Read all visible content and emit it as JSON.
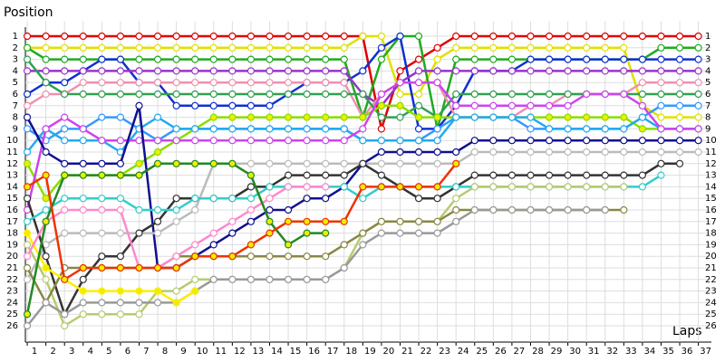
{
  "chart_data": {
    "type": "lap",
    "y_title": "Position",
    "x_title": "Laps",
    "xlim": [
      0.9,
      37.7
    ],
    "ylim": [
      0,
      27
    ],
    "y_reversed": true,
    "grid": true,
    "xticks": [
      1,
      2,
      3,
      4,
      5,
      6,
      7,
      8,
      9,
      10,
      11,
      12,
      13,
      14,
      15,
      16,
      17,
      18,
      19,
      20,
      21,
      22,
      23,
      24,
      25,
      26,
      27,
      28,
      29,
      30,
      31,
      32,
      33,
      34,
      35,
      36,
      37
    ],
    "yticks": [
      1,
      2,
      3,
      4,
      5,
      6,
      7,
      8,
      9,
      10,
      11,
      12,
      13,
      14,
      15,
      16,
      17,
      18,
      19,
      20,
      21,
      22,
      23,
      24,
      25,
      26
    ],
    "x": [
      1,
      2,
      3,
      4,
      5,
      6,
      7,
      8,
      9,
      10,
      11,
      12,
      13,
      14,
      15,
      16,
      17,
      18,
      19,
      20,
      21,
      22,
      23,
      24,
      25,
      26,
      27,
      28,
      29,
      30,
      31,
      32,
      33,
      34,
      35,
      36,
      37
    ],
    "series": [
      {
        "color": "#e00000",
        "marker_fill": "#ffffff",
        "values": [
          1,
          1,
          1,
          1,
          1,
          1,
          1,
          1,
          1,
          1,
          1,
          1,
          1,
          1,
          1,
          1,
          1,
          1,
          1,
          9,
          4,
          3,
          2,
          1,
          1,
          1,
          1,
          1,
          1,
          1,
          1,
          1,
          1,
          1,
          1,
          1,
          1
        ]
      },
      {
        "color": "#e0e000",
        "marker_fill": "#ffffff",
        "values": [
          2,
          2,
          2,
          2,
          2,
          2,
          2,
          2,
          2,
          2,
          2,
          2,
          2,
          2,
          2,
          2,
          2,
          2,
          1,
          1,
          6,
          6,
          3,
          2,
          2,
          2,
          2,
          2,
          2,
          2,
          2,
          2,
          2,
          7,
          8,
          8,
          8
        ]
      },
      {
        "color": "#20aa20",
        "marker_fill": "#ffffff",
        "values": [
          2,
          3,
          3,
          3,
          3,
          3,
          3,
          3,
          3,
          3,
          3,
          3,
          3,
          3,
          3,
          3,
          3,
          3,
          8,
          3,
          1,
          1,
          9,
          3,
          3,
          3,
          3,
          3,
          3,
          3,
          3,
          3,
          3,
          3,
          2,
          2,
          2
        ]
      },
      {
        "color": "#1030d0",
        "marker_fill": "#ffffff",
        "values": [
          6,
          5,
          5,
          4,
          3,
          3,
          5,
          5,
          7,
          7,
          7,
          7,
          7,
          7,
          6,
          5,
          5,
          5,
          4,
          2,
          1,
          9,
          9,
          7,
          4,
          4,
          4,
          3,
          3,
          3,
          3,
          3,
          3,
          3,
          3,
          3,
          3
        ]
      },
      {
        "color": "#9933cc",
        "marker_fill": "#ffffff",
        "values": [
          4,
          4,
          4,
          4,
          4,
          4,
          4,
          4,
          4,
          4,
          4,
          4,
          4,
          4,
          4,
          4,
          4,
          4,
          6,
          7,
          5,
          4,
          4,
          4,
          4,
          4,
          4,
          4,
          4,
          4,
          4,
          4,
          4,
          4,
          4,
          4,
          4
        ]
      },
      {
        "color": "#f090b0",
        "marker_fill": "#ffffff",
        "values": [
          7,
          6,
          6,
          5,
          5,
          5,
          5,
          5,
          5,
          5,
          5,
          5,
          5,
          5,
          5,
          5,
          5,
          5,
          8,
          6,
          5,
          5,
          5,
          8,
          8,
          8,
          8,
          7,
          7,
          6,
          6,
          6,
          6,
          5,
          5,
          5,
          5
        ]
      },
      {
        "color": "#30a050",
        "marker_fill": "#ffffff",
        "values": [
          3,
          5,
          6,
          6,
          6,
          6,
          6,
          6,
          6,
          6,
          6,
          6,
          6,
          6,
          6,
          6,
          6,
          6,
          6,
          8,
          8,
          7,
          8,
          6,
          6,
          6,
          6,
          6,
          6,
          6,
          6,
          6,
          6,
          6,
          6,
          6,
          6
        ]
      },
      {
        "color": "#3399ff",
        "marker_fill": "#ffffff",
        "values": [
          9,
          10,
          9,
          9,
          8,
          8,
          9,
          10,
          9,
          9,
          9,
          9,
          9,
          9,
          9,
          9,
          9,
          9,
          10,
          10,
          10,
          10,
          9,
          8,
          8,
          8,
          8,
          9,
          9,
          9,
          9,
          9,
          9,
          8,
          7,
          7,
          7
        ]
      },
      {
        "color": "#88dd00",
        "marker_fill": "#eeee00",
        "values": [
          12,
          15,
          13,
          13,
          13,
          13,
          12,
          11,
          10,
          9,
          8,
          8,
          8,
          8,
          8,
          8,
          8,
          8,
          8,
          7,
          7,
          8,
          8,
          8,
          8,
          8,
          8,
          8,
          8,
          8,
          8,
          8,
          8,
          9,
          9,
          9,
          9
        ]
      },
      {
        "color": "#22aaee",
        "marker_fill": "#ffffff",
        "values": [
          11,
          9,
          10,
          10,
          10,
          11,
          9,
          8,
          9,
          9,
          9,
          9,
          9,
          9,
          9,
          9,
          9,
          9,
          10,
          10,
          10,
          10,
          10,
          8,
          8,
          8,
          8,
          8,
          9,
          9,
          9,
          9,
          9,
          8,
          9,
          9,
          9
        ]
      },
      {
        "color": "#cc44ee",
        "marker_fill": "#ffffff",
        "values": [
          16,
          9,
          8,
          9,
          10,
          10,
          10,
          10,
          10,
          10,
          10,
          10,
          10,
          10,
          10,
          10,
          10,
          10,
          9,
          6,
          5,
          5,
          5,
          7,
          7,
          7,
          7,
          7,
          7,
          7,
          6,
          6,
          6,
          7,
          9,
          9,
          9
        ]
      },
      {
        "color": "#101090",
        "marker_fill": "#ffffff",
        "values": [
          8,
          11,
          12,
          12,
          12,
          12,
          7,
          21,
          21,
          20,
          19,
          18,
          17,
          16,
          16,
          15,
          15,
          14,
          12,
          11,
          11,
          11,
          11,
          11,
          10,
          10,
          10,
          10,
          10,
          10,
          10,
          10,
          10,
          10,
          10,
          10,
          10
        ]
      },
      {
        "color": "#bbbbbb",
        "marker_fill": "#ffffff",
        "values": [
          22,
          19,
          18,
          18,
          18,
          18,
          18,
          18,
          17,
          16,
          12,
          12,
          12,
          12,
          12,
          12,
          12,
          12,
          12,
          12,
          12,
          12,
          12,
          12,
          11,
          11,
          11,
          11,
          11,
          11,
          11,
          11,
          11,
          11,
          11,
          11,
          11
        ]
      },
      {
        "color": "#333333",
        "marker_fill": "#ffffff",
        "values": [
          15,
          20,
          25,
          22,
          20,
          20,
          18,
          17,
          15,
          15,
          15,
          15,
          14,
          14,
          13,
          13,
          13,
          13,
          12,
          13,
          14,
          15,
          15,
          14,
          13,
          13,
          13,
          13,
          13,
          13,
          13,
          13,
          13,
          13,
          12,
          12,
          null
        ]
      },
      {
        "color": "#33cccc",
        "marker_fill": "#ffffff",
        "values": [
          17,
          16,
          15,
          15,
          15,
          15,
          16,
          16,
          16,
          15,
          15,
          15,
          15,
          14,
          14,
          14,
          14,
          14,
          15,
          14,
          14,
          14,
          14,
          14,
          14,
          14,
          14,
          14,
          14,
          14,
          14,
          14,
          14,
          14,
          13,
          null,
          null
        ]
      },
      {
        "color": "#b5cc70",
        "marker_fill": "#ffffff",
        "values": [
          19,
          22,
          26,
          25,
          25,
          25,
          25,
          23,
          23,
          22,
          22,
          22,
          22,
          22,
          22,
          22,
          22,
          21,
          18,
          17,
          17,
          17,
          17,
          15,
          14,
          14,
          14,
          14,
          14,
          14,
          14,
          14,
          14,
          null,
          null,
          null,
          null
        ]
      },
      {
        "color": "#888844",
        "marker_fill": "#ffffff",
        "values": [
          21,
          24,
          21,
          21,
          21,
          21,
          21,
          21,
          20,
          20,
          20,
          20,
          20,
          20,
          20,
          20,
          20,
          19,
          18,
          17,
          17,
          17,
          17,
          16,
          16,
          16,
          16,
          16,
          16,
          16,
          16,
          16,
          16,
          null,
          null,
          null,
          null
        ]
      },
      {
        "color": "#999999",
        "marker_fill": "#ffffff",
        "values": [
          26,
          24,
          25,
          24,
          24,
          24,
          24,
          24,
          24,
          23,
          22,
          22,
          22,
          22,
          22,
          22,
          22,
          21,
          19,
          18,
          18,
          18,
          18,
          17,
          16,
          16,
          16,
          16,
          16,
          16,
          16,
          16,
          null,
          null,
          null,
          null,
          null
        ]
      },
      {
        "color": "#ffee00",
        "marker_fill": "#eeee00",
        "values": [
          18,
          21,
          22,
          23,
          23,
          23,
          23,
          23,
          24,
          23,
          null,
          null,
          null,
          null,
          null,
          null,
          null,
          null,
          null,
          null,
          null,
          null,
          null,
          null,
          null,
          null,
          null,
          null,
          null,
          null,
          null,
          null,
          null,
          null,
          null,
          null,
          null
        ]
      },
      {
        "color": "#ff88cc",
        "marker_fill": "#ffffff",
        "values": [
          20,
          17,
          16,
          16,
          16,
          16,
          21,
          21,
          20,
          19,
          18,
          17,
          16,
          15,
          14,
          14,
          14,
          null,
          null,
          null,
          null,
          null,
          null,
          null,
          null,
          null,
          null,
          null,
          null,
          null,
          null,
          null,
          null,
          null,
          null,
          null,
          null
        ]
      },
      {
        "color": "#228822",
        "marker_fill": "#eeee00",
        "values": [
          25,
          17,
          13,
          13,
          13,
          13,
          13,
          12,
          12,
          12,
          12,
          12,
          13,
          17,
          19,
          18,
          18,
          null,
          null,
          null,
          null,
          null,
          null,
          null,
          null,
          null,
          null,
          null,
          null,
          null,
          null,
          null,
          null,
          null,
          null,
          null,
          null
        ]
      },
      {
        "color": "#ee3300",
        "marker_fill": "#eeee00",
        "values": [
          14,
          13,
          22,
          21,
          21,
          21,
          21,
          21,
          21,
          20,
          20,
          20,
          19,
          18,
          17,
          17,
          17,
          17,
          14,
          14,
          14,
          14,
          14,
          12,
          null,
          null,
          null,
          null,
          null,
          null,
          null,
          null,
          null,
          null,
          null,
          null,
          null
        ]
      }
    ]
  }
}
